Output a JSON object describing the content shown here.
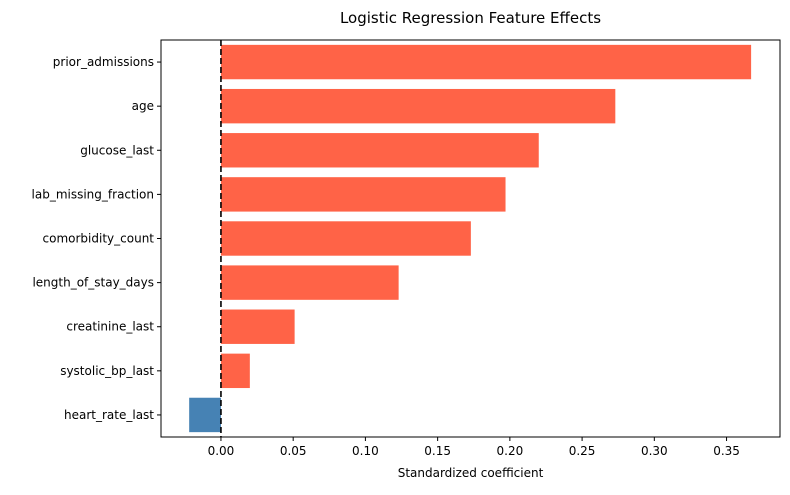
{
  "chart_data": {
    "type": "bar",
    "orientation": "horizontal",
    "title": "Logistic Regression Feature Effects",
    "xlabel": "Standardized coefficient",
    "ylabel": "",
    "categories": [
      "prior_admissions",
      "age",
      "glucose_last",
      "lab_missing_fraction",
      "comorbidity_count",
      "length_of_stay_days",
      "creatinine_last",
      "systolic_bp_last",
      "heart_rate_last"
    ],
    "values": [
      0.367,
      0.273,
      0.22,
      0.197,
      0.173,
      0.123,
      0.051,
      0.02,
      -0.022
    ],
    "xlim": [
      -0.0415,
      0.387
    ],
    "xticks": [
      0.0,
      0.05,
      0.1,
      0.15,
      0.2,
      0.25,
      0.3,
      0.35
    ],
    "xtick_labels": [
      "0.00",
      "0.05",
      "0.10",
      "0.15",
      "0.20",
      "0.25",
      "0.30",
      "0.35"
    ],
    "reference_line": 0,
    "grid": false,
    "colors": {
      "positive": "#ff6347",
      "negative": "#4682b4",
      "reference_line": "#000000"
    }
  }
}
